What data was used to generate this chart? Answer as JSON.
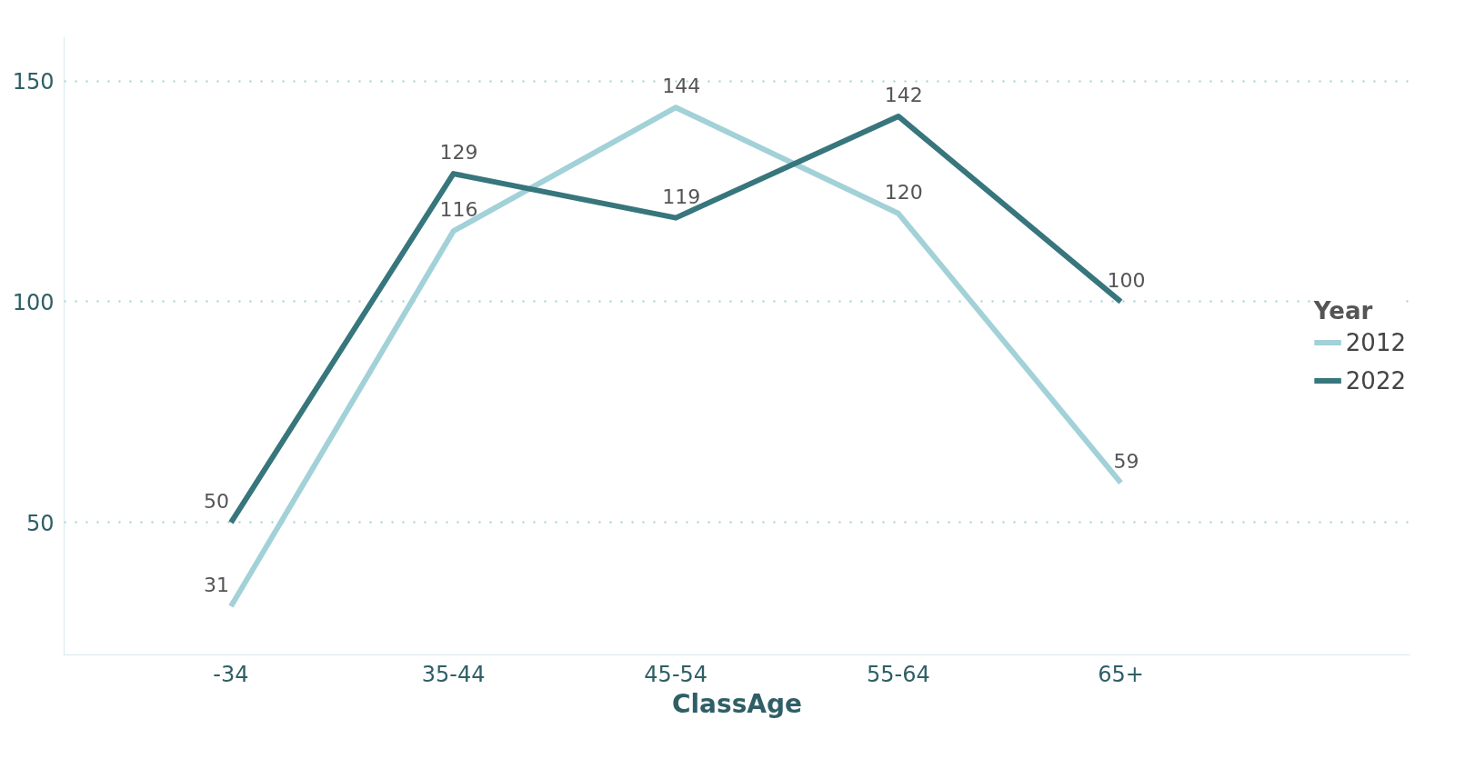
{
  "chart_data": {
    "type": "line",
    "xlabel": "ClassAge",
    "legend_title": "Year",
    "categories": [
      "-34",
      "35-44",
      "45-54",
      "55-64",
      "65+"
    ],
    "series": [
      {
        "name": "2012",
        "color": "#a2d1d8",
        "values": [
          31,
          116,
          144,
          120,
          59
        ]
      },
      {
        "name": "2022",
        "color": "#36767c",
        "values": [
          50,
          129,
          119,
          142,
          100
        ]
      }
    ],
    "ylim": [
      20,
      160
    ],
    "yticks": [
      50,
      100,
      150
    ],
    "grid": "y",
    "legend": "right",
    "data_labels": true,
    "marker": "none",
    "line_style": "solid"
  }
}
